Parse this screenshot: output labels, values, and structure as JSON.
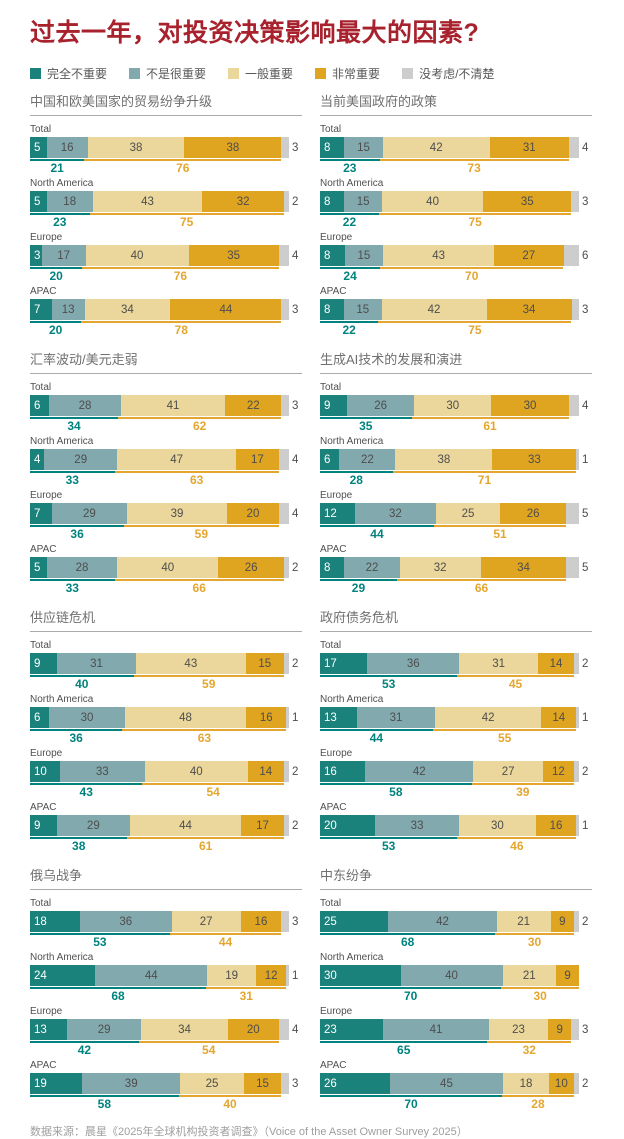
{
  "title": "过去一年，对投资决策影响最大的因素?",
  "footer": "数据来源：晨星《2025年全球机构投资者调查》（Voice of the Asset Owner Survey 2025）",
  "colors": {
    "title": "#A8222D",
    "segments": [
      "#1A817B",
      "#82A9AE",
      "#EBD79B",
      "#DFA521",
      "#CDCDCD"
    ],
    "bar_text": "#4D4D4D",
    "bar_text_first": "#FFFFFF",
    "sum_low": "#00837E",
    "sum_high": "#E5A62F",
    "panel_title_text": "#6F6F6F",
    "footer_text": "#9E9E9E"
  },
  "legend": [
    {
      "label": "完全不重要",
      "color": "#1A817B"
    },
    {
      "label": "不是很重要",
      "color": "#82A9AE"
    },
    {
      "label": "一般重要",
      "color": "#EBD79B"
    },
    {
      "label": "非常重要",
      "color": "#DFA521"
    },
    {
      "label": "没考虑/不清楚",
      "color": "#CDCDCD"
    }
  ],
  "chart_data": {
    "type": "bar",
    "orientation": "horizontal-stacked",
    "unit": "percent",
    "series_labels": [
      "完全不重要",
      "不是很重要",
      "一般重要",
      "非常重要",
      "没考虑/不清楚"
    ],
    "row_categories": [
      "Total",
      "North America",
      "Europe",
      "APAC"
    ],
    "note": "unimportant_sum = teal underline label (segments 1+2); important_sum = gold underline label (segments 3+4)",
    "panels": [
      {
        "title": "中国和欧美国家的贸易纷争升级",
        "rows": [
          {
            "label": "Total",
            "values": [
              5,
              16,
              38,
              38,
              3
            ],
            "unimportant_sum": 21,
            "important_sum": 76
          },
          {
            "label": "North America",
            "values": [
              5,
              18,
              43,
              32,
              2
            ],
            "unimportant_sum": 23,
            "important_sum": 75
          },
          {
            "label": "Europe",
            "values": [
              3,
              17,
              40,
              35,
              4
            ],
            "unimportant_sum": 20,
            "important_sum": 76
          },
          {
            "label": "APAC",
            "values": [
              7,
              13,
              34,
              44,
              3
            ],
            "unimportant_sum": 20,
            "important_sum": 78
          }
        ]
      },
      {
        "title": "当前美国政府的政策",
        "rows": [
          {
            "label": "Total",
            "values": [
              8,
              15,
              42,
              31,
              4
            ],
            "unimportant_sum": 23,
            "important_sum": 73
          },
          {
            "label": "North America",
            "values": [
              8,
              15,
              40,
              35,
              3
            ],
            "unimportant_sum": 22,
            "important_sum": 75
          },
          {
            "label": "Europe",
            "values": [
              8,
              15,
              43,
              27,
              6
            ],
            "unimportant_sum": 24,
            "important_sum": 70
          },
          {
            "label": "APAC",
            "values": [
              8,
              15,
              42,
              34,
              3
            ],
            "unimportant_sum": 22,
            "important_sum": 75
          }
        ]
      },
      {
        "title": "汇率波动/美元走弱",
        "rows": [
          {
            "label": "Total",
            "values": [
              6,
              28,
              41,
              22,
              3
            ],
            "unimportant_sum": 34,
            "important_sum": 62
          },
          {
            "label": "North America",
            "values": [
              4,
              29,
              47,
              17,
              4
            ],
            "unimportant_sum": 33,
            "important_sum": 63
          },
          {
            "label": "Europe",
            "values": [
              7,
              29,
              39,
              20,
              4
            ],
            "unimportant_sum": 36,
            "important_sum": 59
          },
          {
            "label": "APAC",
            "values": [
              5,
              28,
              40,
              26,
              2
            ],
            "unimportant_sum": 33,
            "important_sum": 66
          }
        ]
      },
      {
        "title": "生成AI技术的发展和演进",
        "rows": [
          {
            "label": "Total",
            "values": [
              9,
              26,
              30,
              30,
              4
            ],
            "unimportant_sum": 35,
            "important_sum": 61
          },
          {
            "label": "North America",
            "values": [
              6,
              22,
              38,
              33,
              1
            ],
            "unimportant_sum": 28,
            "important_sum": 71
          },
          {
            "label": "Europe",
            "values": [
              12,
              32,
              25,
              26,
              5
            ],
            "unimportant_sum": 44,
            "important_sum": 51
          },
          {
            "label": "APAC",
            "values": [
              8,
              22,
              32,
              34,
              5
            ],
            "unimportant_sum": 29,
            "important_sum": 66
          }
        ]
      },
      {
        "title": "供应链危机",
        "rows": [
          {
            "label": "Total",
            "values": [
              9,
              31,
              43,
              15,
              2
            ],
            "unimportant_sum": 40,
            "important_sum": 59
          },
          {
            "label": "North America",
            "values": [
              6,
              30,
              48,
              16,
              1
            ],
            "unimportant_sum": 36,
            "important_sum": 63
          },
          {
            "label": "Europe",
            "values": [
              10,
              33,
              40,
              14,
              2
            ],
            "unimportant_sum": 43,
            "important_sum": 54
          },
          {
            "label": "APAC",
            "values": [
              9,
              29,
              44,
              17,
              2
            ],
            "unimportant_sum": 38,
            "important_sum": 61
          }
        ]
      },
      {
        "title": "政府债务危机",
        "rows": [
          {
            "label": "Total",
            "values": [
              17,
              36,
              31,
              14,
              2
            ],
            "unimportant_sum": 53,
            "important_sum": 45
          },
          {
            "label": "North America",
            "values": [
              13,
              31,
              42,
              14,
              1
            ],
            "unimportant_sum": 44,
            "important_sum": 55
          },
          {
            "label": "Europe",
            "values": [
              16,
              42,
              27,
              12,
              2
            ],
            "unimportant_sum": 58,
            "important_sum": 39
          },
          {
            "label": "APAC",
            "values": [
              20,
              33,
              30,
              16,
              1
            ],
            "unimportant_sum": 53,
            "important_sum": 46
          }
        ]
      },
      {
        "title": "俄乌战争",
        "rows": [
          {
            "label": "Total",
            "values": [
              18,
              36,
              27,
              16,
              3
            ],
            "unimportant_sum": 53,
            "important_sum": 44
          },
          {
            "label": "North America",
            "values": [
              24,
              44,
              19,
              12,
              1
            ],
            "unimportant_sum": 68,
            "important_sum": 31
          },
          {
            "label": "Europe",
            "values": [
              13,
              29,
              34,
              20,
              4
            ],
            "unimportant_sum": 42,
            "important_sum": 54
          },
          {
            "label": "APAC",
            "values": [
              19,
              39,
              25,
              15,
              3
            ],
            "unimportant_sum": 58,
            "important_sum": 40
          }
        ]
      },
      {
        "title": "中东纷争",
        "rows": [
          {
            "label": "Total",
            "values": [
              25,
              42,
              21,
              9,
              2
            ],
            "unimportant_sum": 68,
            "important_sum": 30
          },
          {
            "label": "North America",
            "values": [
              30,
              40,
              21,
              9,
              0
            ],
            "unimportant_sum": 70,
            "important_sum": 30
          },
          {
            "label": "Europe",
            "values": [
              23,
              41,
              23,
              9,
              3
            ],
            "unimportant_sum": 65,
            "important_sum": 32
          },
          {
            "label": "APAC",
            "values": [
              26,
              45,
              18,
              10,
              2
            ],
            "unimportant_sum": 70,
            "important_sum": 28
          }
        ]
      }
    ]
  }
}
